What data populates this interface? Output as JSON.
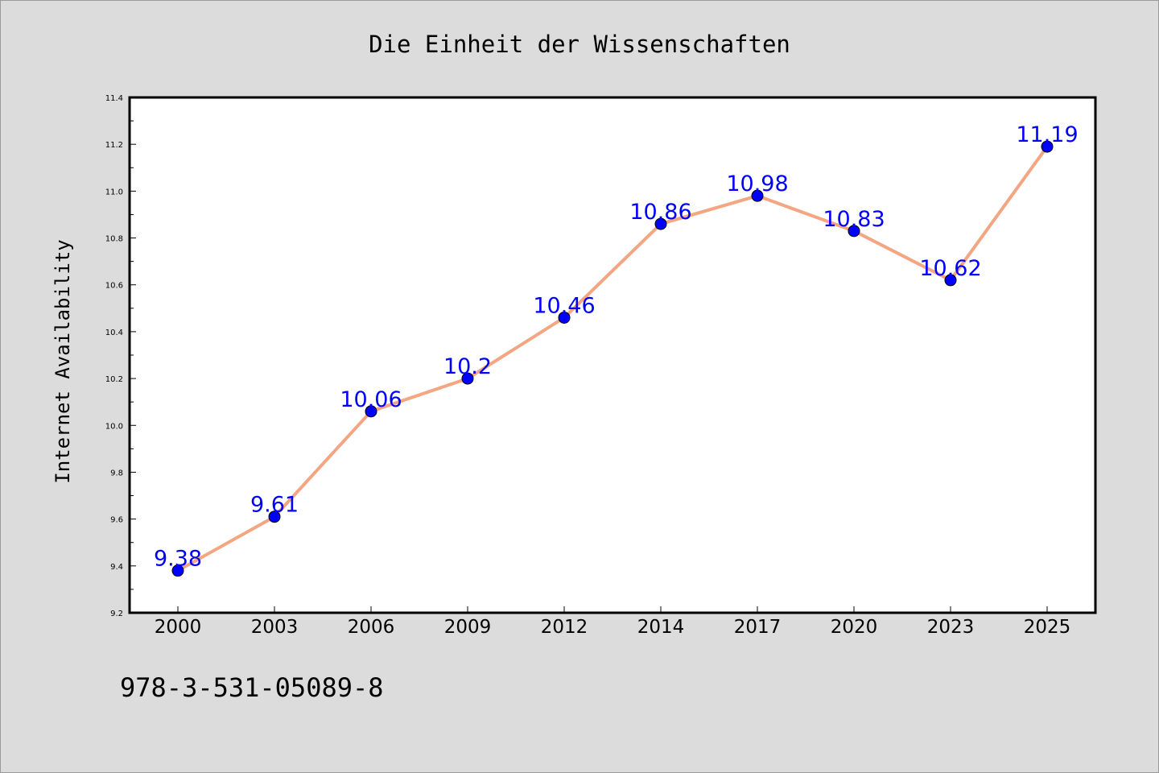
{
  "chart_data": {
    "type": "line",
    "title": "Die Einheit der Wissenschaften",
    "ylabel": "Internet Availability",
    "xlabel": "",
    "categories": [
      "2000",
      "2003",
      "2006",
      "2009",
      "2012",
      "2014",
      "2017",
      "2020",
      "2023",
      "2025"
    ],
    "series": [
      {
        "values": [
          9.38,
          9.61,
          10.06,
          10.2,
          10.46,
          10.86,
          10.98,
          10.83,
          10.62,
          11.19
        ],
        "labels": [
          "9.38",
          "9.61",
          "10.06",
          "10.2",
          "10.46",
          "10.86",
          "10.98",
          "10.83",
          "10.62",
          "11.19"
        ],
        "line_color": "#f4a582",
        "marker_color": "#0000ff",
        "label_color": "#0000ff"
      }
    ],
    "ylim": [
      9.2,
      11.4
    ],
    "yticks": [
      "9.2",
      "9.4",
      "9.6",
      "9.8",
      "10.0",
      "10.2",
      "10.4",
      "10.6",
      "10.8",
      "11.0",
      "11.2",
      "11.4"
    ],
    "grid": false,
    "legend": "none",
    "background": "#dcdcdc",
    "plot_background": "#ffffff"
  },
  "footer": {
    "isbn": "978-3-531-05089-8"
  }
}
